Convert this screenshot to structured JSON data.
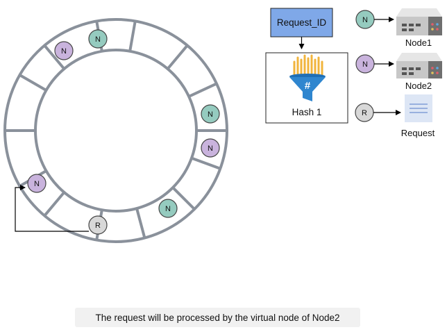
{
  "colors": {
    "ring": "#8a919b",
    "node1_fill": "#95cbbf",
    "node2_fill": "#c9b3dd",
    "request_fill": "#d8d8d8",
    "request_id_box": "#7fa8e8",
    "funnel_blue": "#2f86cf",
    "funnel_orange": "#f1b43c",
    "server_body": "#c7c7c7",
    "doc_fill": "#dde6f5"
  },
  "ring_markers": [
    {
      "label": "N",
      "kind": "node1"
    },
    {
      "label": "N",
      "kind": "node2"
    },
    {
      "label": "N",
      "kind": "node1"
    },
    {
      "label": "N",
      "kind": "node2"
    },
    {
      "label": "N",
      "kind": "node1"
    },
    {
      "label": "R",
      "kind": "request"
    },
    {
      "label": "N",
      "kind": "node2"
    }
  ],
  "hash_box": {
    "request_id_label": "Request_ID",
    "hash_label": "Hash 1",
    "hash_symbol": "#",
    "icon": "hash-funnel-icon"
  },
  "legend": [
    {
      "marker": "N",
      "kind": "node1",
      "label": "Node1",
      "icon": "server-icon"
    },
    {
      "marker": "N",
      "kind": "node2",
      "label": "Node2",
      "icon": "server-icon"
    },
    {
      "marker": "R",
      "kind": "request",
      "label": "Request",
      "icon": "document-icon"
    }
  ],
  "caption": "The request will be processed by the virtual node of Node2"
}
